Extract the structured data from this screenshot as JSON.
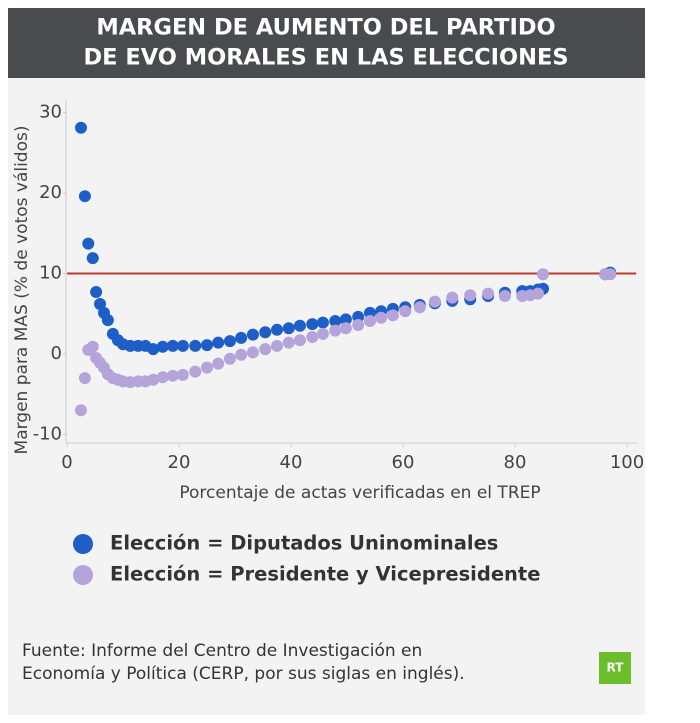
{
  "chart_data": {
    "type": "scatter",
    "title": [
      "MARGEN DE AUMENTO DEL PARTIDO",
      "DE EVO MORALES EN LAS ELECCIONES"
    ],
    "x_label": "Porcentaje de actas verificadas en el TREP",
    "y_label": "Margen para MAS (% de votos válidos)",
    "xlim": [
      0,
      102
    ],
    "ylim": [
      -11,
      31.5
    ],
    "xticks": [
      0,
      20,
      40,
      60,
      80,
      100
    ],
    "yticks": [
      -10,
      0,
      10,
      20,
      30
    ],
    "hline": {
      "value": 10,
      "color": "#c0392b"
    },
    "grid": false,
    "x": [
      2.5,
      3.2,
      3.8,
      4.6,
      5.2,
      5.9,
      6.6,
      7.3,
      8.2,
      9.1,
      10,
      11.3,
      12.7,
      14,
      15.4,
      17.1,
      18.9,
      20.7,
      22.9,
      25,
      27,
      29.1,
      31.1,
      33.2,
      35.4,
      37.5,
      39.6,
      41.6,
      43.8,
      45.7,
      47.9,
      49.8,
      52,
      54.1,
      56.1,
      58.2,
      60.4,
      63,
      65.7,
      68.8,
      72,
      75.2,
      78.2,
      81.3,
      82.7,
      84.1,
      85,
      96.1,
      97
    ],
    "series": [
      {
        "name": "Elección = Diputados Uninominales",
        "color": "#1d5fc6",
        "values": [
          28.1,
          19.6,
          13.7,
          11.9,
          7.7,
          6.2,
          5.1,
          4.2,
          2.5,
          1.7,
          1.2,
          1.0,
          1.0,
          1.0,
          0.6,
          0.9,
          1.0,
          1.0,
          1.0,
          1.1,
          1.4,
          1.6,
          2.0,
          2.4,
          2.7,
          3.0,
          3.2,
          3.5,
          3.7,
          3.9,
          4.1,
          4.3,
          4.6,
          5.1,
          5.3,
          5.6,
          5.8,
          6.1,
          6.3,
          6.6,
          6.8,
          7.2,
          7.6,
          7.8,
          7.8,
          8.0,
          8.1,
          9.9,
          10.1
        ]
      },
      {
        "name": "Elección = Presidente y Vicepresidente",
        "color": "#b4a4da",
        "values": [
          -7.0,
          -3.0,
          0.5,
          0.9,
          -0.5,
          -1.1,
          -1.7,
          -2.5,
          -3.0,
          -3.2,
          -3.4,
          -3.5,
          -3.4,
          -3.4,
          -3.2,
          -2.9,
          -2.7,
          -2.6,
          -2.2,
          -1.7,
          -1.2,
          -0.6,
          -0.1,
          0.2,
          0.6,
          1.0,
          1.4,
          1.7,
          2.1,
          2.5,
          2.9,
          3.2,
          3.6,
          4.1,
          4.5,
          4.8,
          5.3,
          5.8,
          6.5,
          7.0,
          7.3,
          7.5,
          7.2,
          7.2,
          7.3,
          7.5,
          9.9,
          9.9,
          9.9
        ]
      }
    ],
    "source": [
      "Fuente: Informe del Centro de Investigación en",
      "Economía y Política (CERP, por sus siglas en inglés)."
    ],
    "logo": "RT"
  }
}
